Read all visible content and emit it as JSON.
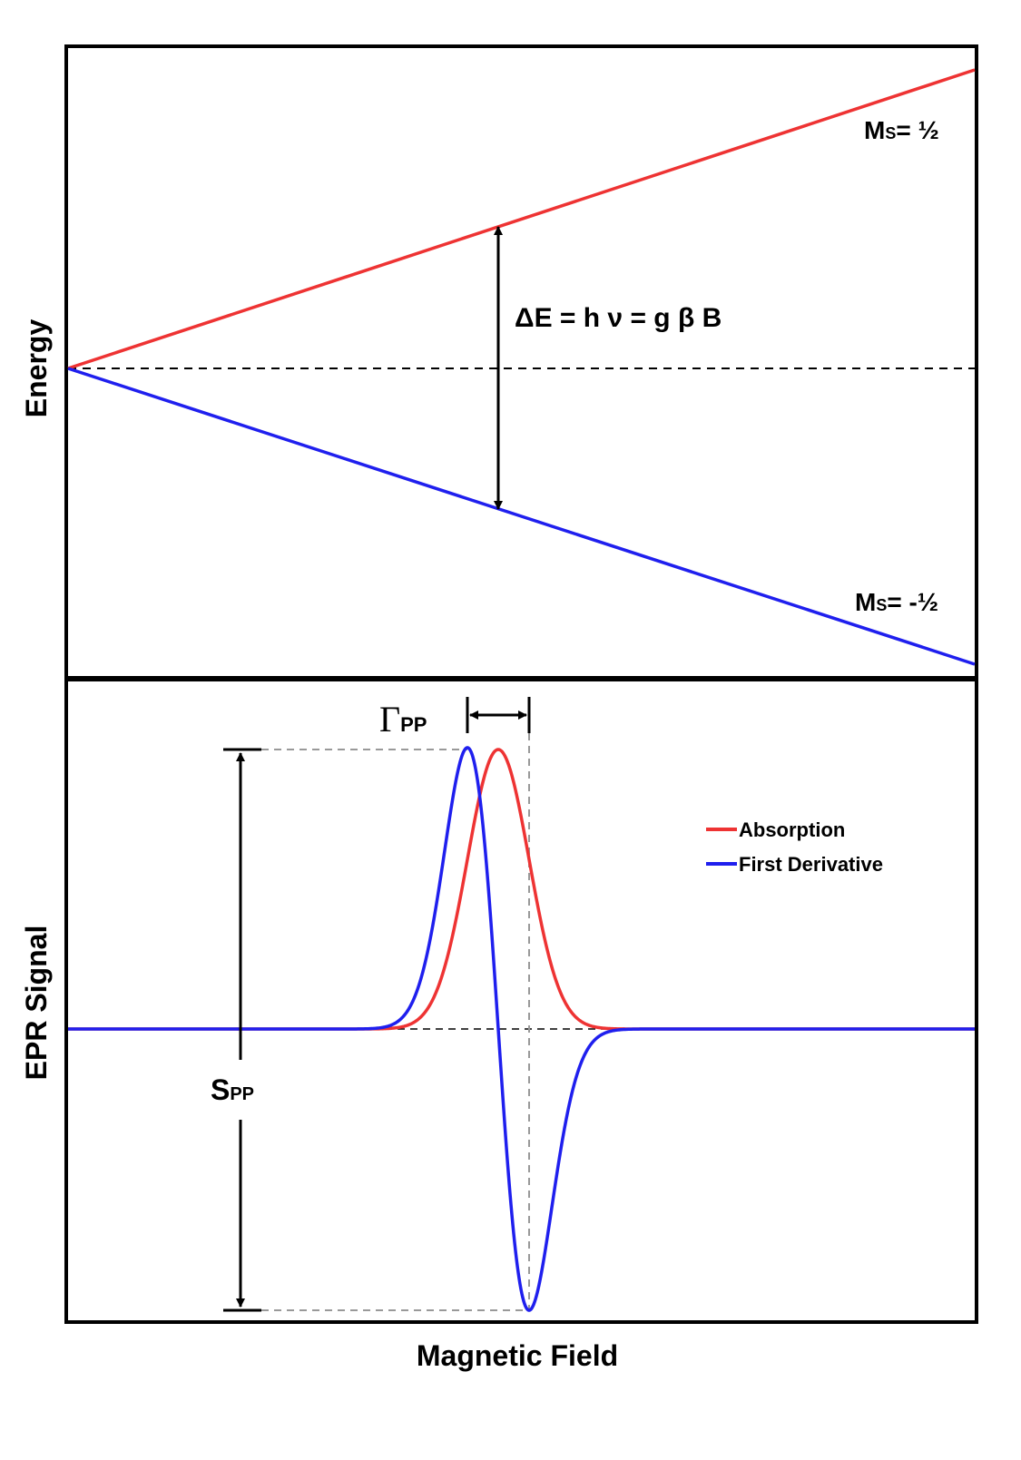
{
  "top_panel": {
    "ylabel": "Energy",
    "upper_level": {
      "label_main": "M",
      "label_sub": "S",
      "label_value": "= ½",
      "color": "#ee3333"
    },
    "lower_level": {
      "label_main": "M",
      "label_sub": "S",
      "label_value": "= -½",
      "color": "#1f1fee"
    },
    "equation": "ΔE = h ν = g β B"
  },
  "bottom_panel": {
    "ylabel": "EPR Signal",
    "xlabel": "Magnetic Field",
    "gamma_label": {
      "symbol": "Γ",
      "sub": "PP"
    },
    "s_label": {
      "main": "S",
      "sub": "PP"
    },
    "legend": [
      {
        "name": "Absorption",
        "color": "#ee3333"
      },
      {
        "name": "First Derivative",
        "color": "#1f1fee"
      }
    ]
  }
}
